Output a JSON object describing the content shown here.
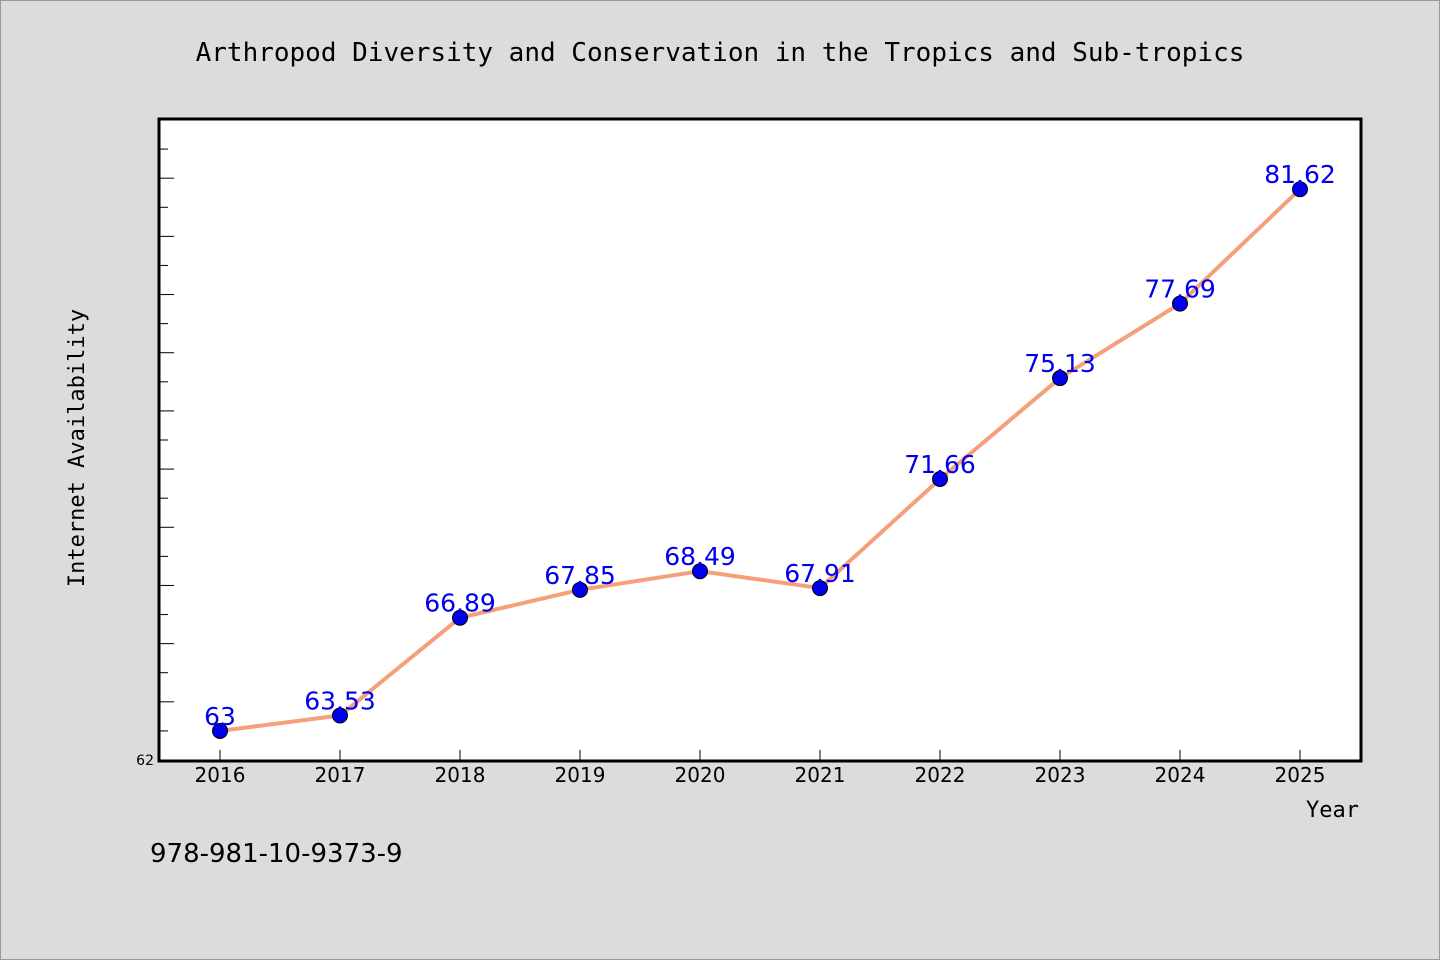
{
  "chart_data": {
    "type": "line",
    "title": "Arthropod Diversity and Conservation in the Tropics and Sub-tropics",
    "xlabel": "Year",
    "ylabel": "Internet Availability",
    "categories": [
      "2016",
      "2017",
      "2018",
      "2019",
      "2020",
      "2021",
      "2022",
      "2023",
      "2024",
      "2025"
    ],
    "series": [
      {
        "values": [
          63,
          63.53,
          66.89,
          67.85,
          68.49,
          67.91,
          71.66,
          75.13,
          77.69,
          81.62
        ],
        "labels": [
          "63",
          "63.53",
          "66.89",
          "67.85",
          "68.49",
          "67.91",
          "71.66",
          "75.13",
          "77.69",
          "81.62"
        ]
      }
    ],
    "ylim": [
      62,
      84
    ],
    "y_tick_labels": [
      "62"
    ],
    "line_color": "#f4a07a",
    "marker_color": "#0000ee",
    "label_color": "#0000ee",
    "grid": false
  },
  "footer": {
    "isbn": "978-981-10-9373-9"
  }
}
